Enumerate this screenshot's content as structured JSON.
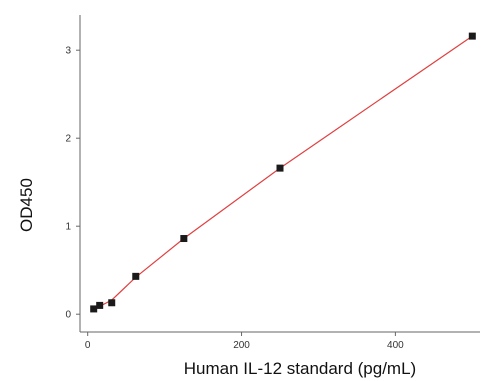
{
  "chart_data": {
    "type": "scatter",
    "title": "",
    "xlabel": "Human IL-12 standard (pg/mL)",
    "ylabel": "OD450",
    "xlim": [
      -10,
      510
    ],
    "ylim": [
      -0.1,
      3.4
    ],
    "x_ticks": [
      0,
      200,
      400
    ],
    "y_ticks": [
      0,
      1,
      2,
      3
    ],
    "x_tick_labels": [
      "0",
      "200",
      "400"
    ],
    "y_tick_labels": [
      "0",
      "1",
      "2",
      "3"
    ],
    "grid": false,
    "legend": "none",
    "series": [
      {
        "marker": "square",
        "color": "#1a1a1a",
        "x": [
          7.8,
          15.6,
          31.25,
          62.5,
          125,
          250,
          500
        ],
        "y": [
          0.06,
          0.1,
          0.13,
          0.43,
          0.86,
          1.66,
          3.16
        ]
      }
    ],
    "fit_line": {
      "color": "#e04040",
      "x": [
        7.8,
        15.6,
        31.25,
        62.5,
        125,
        250,
        500
      ],
      "y": [
        0.06,
        0.09,
        0.16,
        0.42,
        0.86,
        1.66,
        3.16
      ]
    }
  }
}
